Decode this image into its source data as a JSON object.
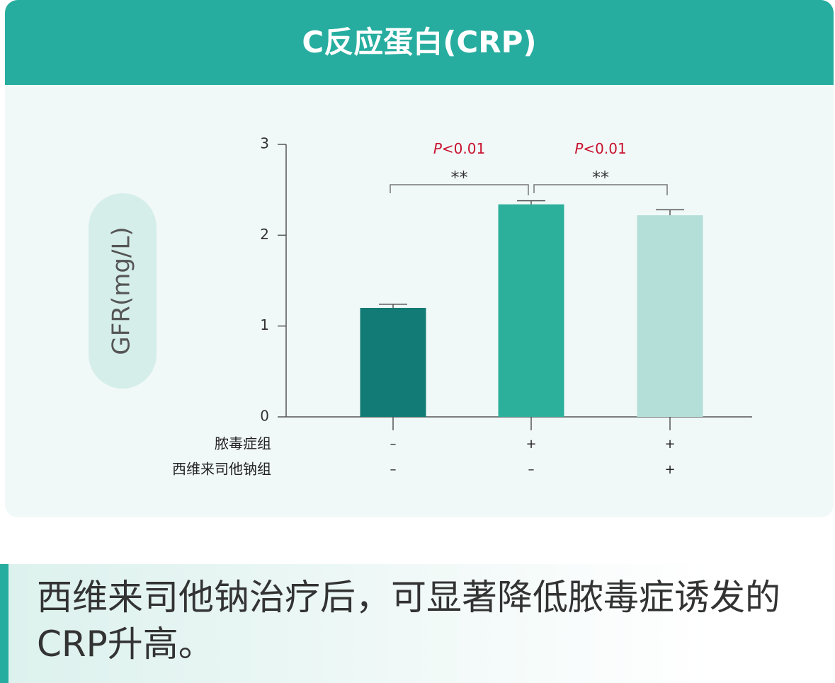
{
  "chart_data": {
    "type": "bar",
    "title": "C反应蛋白(CRP)",
    "y_label": "GFR(mg/L)",
    "categories": [
      null,
      null,
      null
    ],
    "values": [
      1.2,
      2.34,
      2.22
    ],
    "errors": [
      0.04,
      0.04,
      0.06
    ],
    "colors": [
      "#137b75",
      "#2db09b",
      "#b4dfd9"
    ],
    "ylim": [
      0,
      3
    ],
    "yticks": [
      0,
      1,
      2,
      3
    ],
    "groups": [
      {
        "label": "脓毒症组",
        "marks": [
          "–",
          "+",
          "+"
        ]
      },
      {
        "label": "西维来司他钠组",
        "marks": [
          "–",
          "–",
          "+"
        ]
      }
    ],
    "comparisons": [
      {
        "stars": "**",
        "p_symbol": "P",
        "p_text": "<0.01"
      },
      {
        "stars": "**",
        "p_symbol": "P",
        "p_text": "<0.01"
      }
    ]
  },
  "caption": "西维来司他钠治疗后，可显著降低脓毒症诱发的CRP升高。"
}
